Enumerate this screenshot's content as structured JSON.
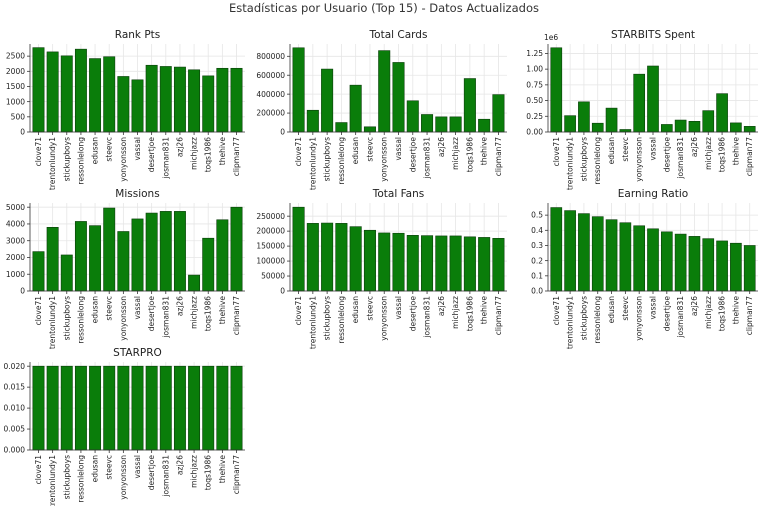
{
  "figure": {
    "title": "Estadísticas por Usuario (Top 15) - Datos Actualizados",
    "bar_color": "#0a7d0a",
    "edge_color": "#0a3d0a"
  },
  "chart_data": [
    {
      "type": "bar",
      "title": "Rank Pts",
      "categories": [
        "clove71",
        "trentonlundy1",
        "stickupboys",
        "ressonlelong",
        "edusan",
        "steevc",
        "yonyonsson",
        "vassal",
        "desertjoe",
        "josman831",
        "azj26",
        "michjazz",
        "toqs1986",
        "thehive",
        "clipman77"
      ],
      "values": [
        2780,
        2640,
        2510,
        2730,
        2420,
        2480,
        1830,
        1720,
        2200,
        2160,
        2140,
        2050,
        1850,
        2100,
        2100
      ],
      "ylim": [
        0,
        2900
      ],
      "yticks": [
        0,
        500,
        1000,
        1500,
        2000,
        2500
      ],
      "ytick_labels": [
        "0",
        "500",
        "1000",
        "1500",
        "2000",
        "2500"
      ],
      "grid": true
    },
    {
      "type": "bar",
      "title": "Total Cards",
      "categories": [
        "clove71",
        "trentonlundy1",
        "stickupboys",
        "ressonlelong",
        "edusan",
        "steevc",
        "yonyonsson",
        "vassal",
        "desertjoe",
        "josman831",
        "azj26",
        "michjazz",
        "toqs1986",
        "thehive",
        "clipman77"
      ],
      "values": [
        890000,
        230000,
        665000,
        100000,
        495000,
        55000,
        860000,
        735000,
        330000,
        185000,
        160000,
        160000,
        565000,
        135000,
        395000
      ],
      "ylim": [
        0,
        930000
      ],
      "yticks": [
        0,
        200000,
        400000,
        600000,
        800000
      ],
      "ytick_labels": [
        "0",
        "200000",
        "400000",
        "600000",
        "800000"
      ],
      "grid": true
    },
    {
      "type": "bar",
      "title": "STARBITS Spent",
      "categories": [
        "clove71",
        "trentonlundy1",
        "stickupboys",
        "ressonlelong",
        "edusan",
        "steevc",
        "yonyonsson",
        "vassal",
        "desertjoe",
        "josman831",
        "azj26",
        "michjazz",
        "toqs1986",
        "thehive",
        "clipman77"
      ],
      "values": [
        1340000,
        260000,
        480000,
        140000,
        380000,
        40000,
        920000,
        1050000,
        120000,
        190000,
        170000,
        340000,
        610000,
        145000,
        90000
      ],
      "ylim": [
        0,
        1400000
      ],
      "yticks": [
        0,
        250000,
        500000,
        750000,
        1000000,
        1250000
      ],
      "ytick_labels": [
        "0.00",
        "0.25",
        "0.50",
        "0.75",
        "1.00",
        "1.25"
      ],
      "offset_label": "1e6",
      "grid": true
    },
    {
      "type": "bar",
      "title": "Missions",
      "categories": [
        "clove71",
        "trentonlundy1",
        "stickupboys",
        "ressonlelong",
        "edusan",
        "steevc",
        "yonyonsson",
        "vassal",
        "desertjoe",
        "josman831",
        "azj26",
        "michjazz",
        "toqs1986",
        "thehive",
        "clipman77"
      ],
      "values": [
        2350,
        3800,
        2150,
        4150,
        3900,
        4950,
        3550,
        4300,
        4650,
        4750,
        4750,
        950,
        3150,
        4250,
        5000
      ],
      "ylim": [
        0,
        5250
      ],
      "yticks": [
        0,
        1000,
        2000,
        3000,
        4000,
        5000
      ],
      "ytick_labels": [
        "0",
        "1000",
        "2000",
        "3000",
        "4000",
        "5000"
      ],
      "grid": true
    },
    {
      "type": "bar",
      "title": "Total Fans",
      "categories": [
        "clove71",
        "trentonlundy1",
        "stickupboys",
        "ressonlelong",
        "edusan",
        "steevc",
        "yonyonsson",
        "vassal",
        "desertjoe",
        "josman831",
        "azj26",
        "michjazz",
        "toqs1986",
        "thehive",
        "clipman77"
      ],
      "values": [
        280000,
        226000,
        227000,
        226000,
        215000,
        203000,
        194000,
        193000,
        186000,
        185000,
        184000,
        184000,
        181000,
        179000,
        176000
      ],
      "ylim": [
        0,
        294000
      ],
      "yticks": [
        0,
        50000,
        100000,
        150000,
        200000,
        250000
      ],
      "ytick_labels": [
        "0",
        "50000",
        "100000",
        "150000",
        "200000",
        "250000"
      ],
      "grid": true
    },
    {
      "type": "bar",
      "title": "Earning Ratio",
      "categories": [
        "clove71",
        "trentonlundy1",
        "stickupboys",
        "ressonlelong",
        "edusan",
        "steevc",
        "yonyonsson",
        "vassal",
        "desertjoe",
        "josman831",
        "azj26",
        "michjazz",
        "toqs1986",
        "thehive",
        "clipman77"
      ],
      "values": [
        0.55,
        0.53,
        0.51,
        0.49,
        0.47,
        0.45,
        0.43,
        0.41,
        0.39,
        0.375,
        0.36,
        0.345,
        0.33,
        0.315,
        0.3
      ],
      "ylim": [
        0,
        0.58
      ],
      "yticks": [
        0,
        0.1,
        0.2,
        0.3,
        0.4,
        0.5
      ],
      "ytick_labels": [
        "0.0",
        "0.1",
        "0.2",
        "0.3",
        "0.4",
        "0.5"
      ],
      "grid": true
    },
    {
      "type": "bar",
      "title": "STARPRO",
      "categories": [
        "clove71",
        "trentonlundy1",
        "stickupboys",
        "ressonlelong",
        "edusan",
        "steevc",
        "yonyonsson",
        "vassal",
        "desertjoe",
        "josman831",
        "azj26",
        "michjazz",
        "toqs1986",
        "thehive",
        "clipman77"
      ],
      "values": [
        0.02,
        0.02,
        0.02,
        0.02,
        0.02,
        0.02,
        0.02,
        0.02,
        0.02,
        0.02,
        0.02,
        0.02,
        0.02,
        0.02,
        0.02
      ],
      "ylim": [
        0,
        0.021
      ],
      "yticks": [
        0,
        0.005,
        0.01,
        0.015,
        0.02
      ],
      "ytick_labels": [
        "0.000",
        "0.005",
        "0.010",
        "0.015",
        "0.020"
      ],
      "grid": true
    }
  ]
}
